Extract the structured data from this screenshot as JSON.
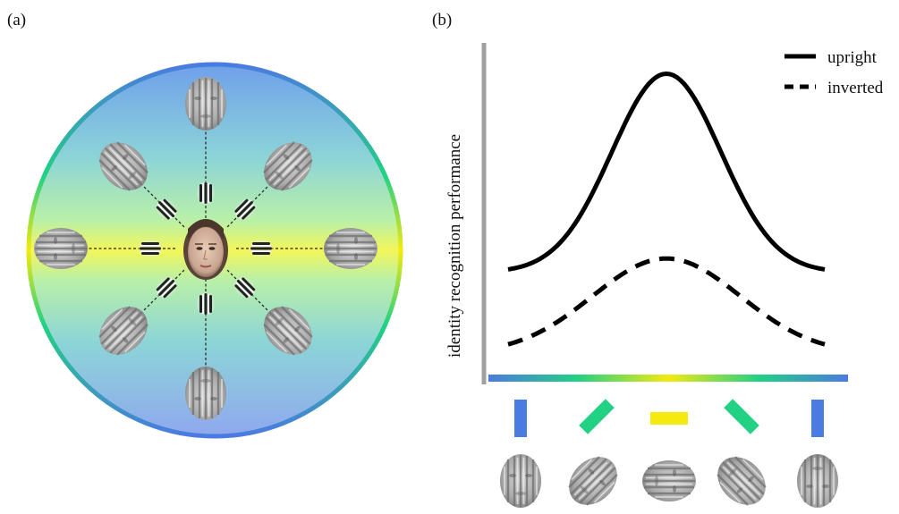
{
  "panels": {
    "a": {
      "label": "(a)"
    },
    "b": {
      "label": "(b)"
    }
  },
  "chart_data": {
    "type": "line",
    "ylabel": "identity recognition performance",
    "xlabel": "",
    "x_orientations_deg": [
      90,
      45,
      0,
      -45,
      -90
    ],
    "x": [
      -90,
      -45,
      0,
      45,
      90
    ],
    "series": [
      {
        "name": "upright",
        "style": "solid",
        "color": "#000000",
        "curve": {
          "baseline": 0.355,
          "peak": 1.0,
          "sigma": 31
        }
      },
      {
        "name": "inverted",
        "style": "dashed",
        "color": "#000000",
        "curve": {
          "baseline": 0.09,
          "peak": 0.4,
          "sigma": 42
        }
      }
    ],
    "ylim": [
      0,
      1.1
    ],
    "legend_position": "top-right",
    "grid": false
  },
  "colors": {
    "vertical": "#4a7be0",
    "oblique": "#22d183",
    "horizontal": "#f4ea10",
    "axis_gray": "#a0a0a0"
  },
  "diagram_a": {
    "center_face": "upright face photo",
    "spoke_angles_deg": [
      90,
      45,
      0,
      -45,
      -90,
      -135,
      180,
      135
    ],
    "filtered_face_icon": "filtered-face-icon",
    "gabor_icon": "gabor-patch-icon"
  }
}
